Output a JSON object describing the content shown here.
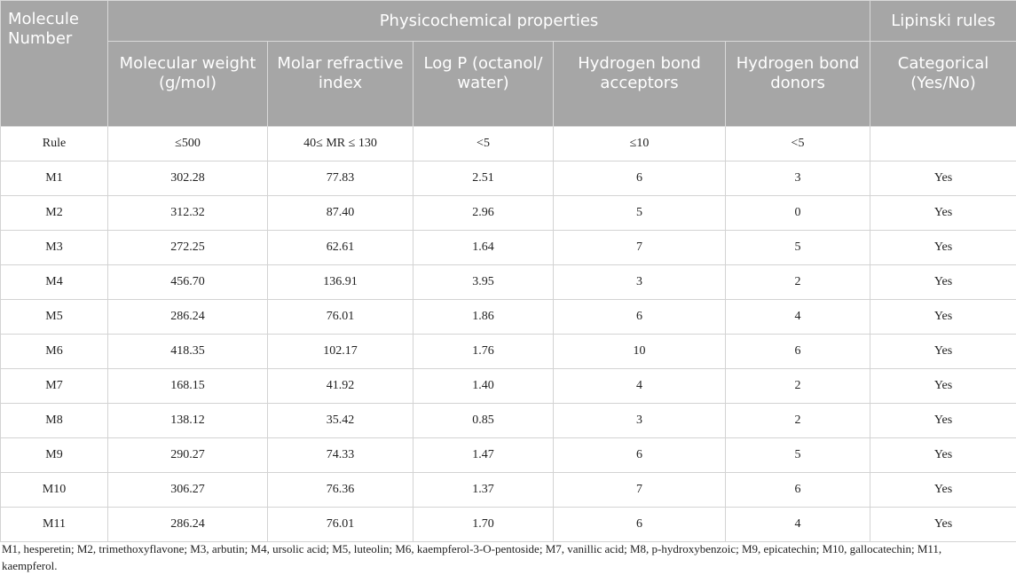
{
  "header": {
    "molecule_number": "Molecule Number",
    "group_physico": "Physicochemical properties",
    "group_lipinski": "Lipinski rules",
    "columns": [
      "Molecular weight (g/mol)",
      "Molar refractive index",
      "Log P (octanol/ water)",
      "Hydrogen bond acceptors",
      "Hydrogen bond donors",
      "Categorical (Yes/No)"
    ]
  },
  "rows": [
    [
      "Rule",
      "≤500",
      "40≤ MR ≤ 130",
      "<5",
      "≤10",
      "<5",
      ""
    ],
    [
      "M1",
      "302.28",
      "77.83",
      "2.51",
      "6",
      "3",
      "Yes"
    ],
    [
      "M2",
      "312.32",
      "87.40",
      "2.96",
      "5",
      "0",
      "Yes"
    ],
    [
      "M3",
      "272.25",
      "62.61",
      "1.64",
      "7",
      "5",
      "Yes"
    ],
    [
      "M4",
      "456.70",
      "136.91",
      "3.95",
      "3",
      "2",
      "Yes"
    ],
    [
      "M5",
      "286.24",
      "76.01",
      "1.86",
      "6",
      "4",
      "Yes"
    ],
    [
      "M6",
      "418.35",
      "102.17",
      "1.76",
      "10",
      "6",
      "Yes"
    ],
    [
      "M7",
      "168.15",
      "41.92",
      "1.40",
      "4",
      "2",
      "Yes"
    ],
    [
      "M8",
      "138.12",
      "35.42",
      "0.85",
      "3",
      "2",
      "Yes"
    ],
    [
      "M9",
      "290.27",
      "74.33",
      "1.47",
      "6",
      "5",
      "Yes"
    ],
    [
      "M10",
      "306.27",
      "76.36",
      "1.37",
      "7",
      "6",
      "Yes"
    ],
    [
      "M11",
      "286.24",
      "76.01",
      "1.70",
      "6",
      "4",
      "Yes"
    ]
  ],
  "footnote": "M1, hesperetin; M2, trimethoxyflavone; M3, arbutin; M4, ursolic acid; M5, luteolin; M6, kaempferol-3-O-pentoside; M7, vanillic acid; M8, p-hydroxybenzoic; M9, epicatechin; M10, gallocatechin; M11, kaempferol."
}
